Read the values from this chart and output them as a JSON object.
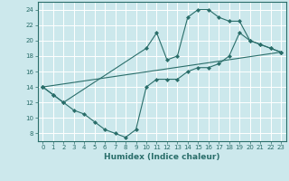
{
  "xlabel": "Humidex (Indice chaleur)",
  "xlim": [
    -0.5,
    23.5
  ],
  "ylim": [
    7,
    25
  ],
  "yticks": [
    8,
    10,
    12,
    14,
    16,
    18,
    20,
    22,
    24
  ],
  "xticks": [
    0,
    1,
    2,
    3,
    4,
    5,
    6,
    7,
    8,
    9,
    10,
    11,
    12,
    13,
    14,
    15,
    16,
    17,
    18,
    19,
    20,
    21,
    22,
    23
  ],
  "bg_color": "#cce8ec",
  "line_color": "#2a6e6a",
  "grid_color": "#ffffff",
  "line1_x": [
    0,
    1,
    2,
    3,
    4,
    5,
    6,
    7,
    8,
    9,
    10,
    11,
    12,
    13,
    14,
    15,
    16,
    17,
    18,
    19,
    20,
    21,
    22,
    23
  ],
  "line1_y": [
    14,
    13,
    12,
    11,
    10.5,
    9.5,
    8.5,
    8,
    7.5,
    8.5,
    14,
    15,
    15,
    15,
    16,
    16.5,
    16.5,
    17,
    18,
    21,
    20,
    19.5,
    19,
    18.5
  ],
  "line2_x": [
    0,
    1,
    2,
    10,
    11,
    12,
    13,
    14,
    15,
    16,
    17,
    18,
    19,
    20,
    21,
    22,
    23
  ],
  "line2_y": [
    14,
    13,
    12,
    19,
    21,
    17.5,
    18,
    23,
    24,
    24,
    23,
    22.5,
    22.5,
    20,
    19.5,
    19,
    18.5
  ],
  "line3_x": [
    0,
    23
  ],
  "line3_y": [
    14,
    18.5
  ]
}
